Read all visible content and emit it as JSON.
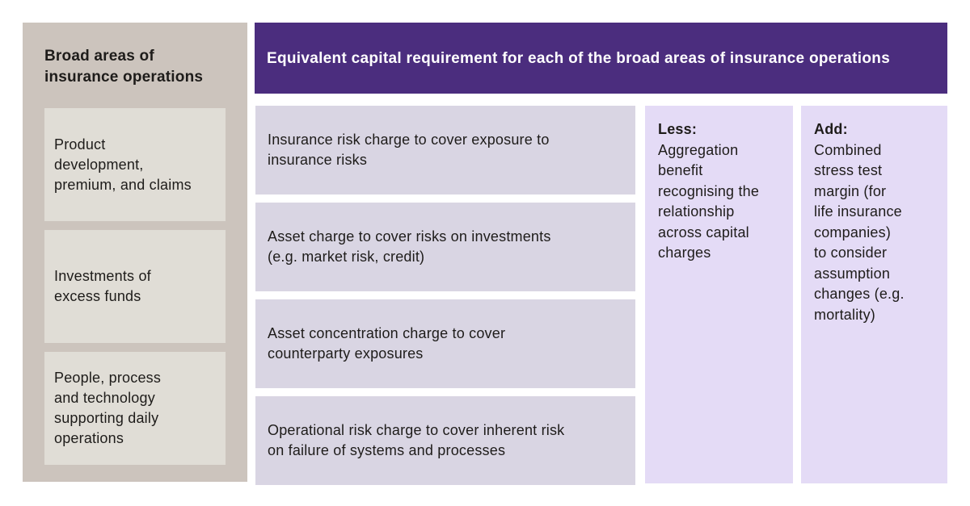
{
  "colors": {
    "page_bg": "#ffffff",
    "sidebar_bg": "#ccc4bd",
    "sidebar_box_bg": "#e0ddd6",
    "banner_bg": "#4b2d7e",
    "banner_text": "#ffffff",
    "charge_box_bg": "#d9d5e3",
    "adjustment_panel_bg": "#e4dbf6",
    "body_text": "#1e1c1a"
  },
  "sidebar": {
    "title": "Broad areas of\ninsurance operations",
    "items": [
      {
        "text": "Product\ndevelopment,\npremium, and claims"
      },
      {
        "text": "Investments of\nexcess funds"
      },
      {
        "text": "People, process\nand technology\nsupporting daily\noperations"
      }
    ]
  },
  "banner": {
    "title": "Equivalent capital requirement for each of the broad areas of insurance operations"
  },
  "charges": [
    {
      "text": "Insurance risk charge to cover exposure to\ninsurance risks"
    },
    {
      "text": "Asset charge to cover risks on investments\n(e.g. market risk, credit)"
    },
    {
      "text": "Asset concentration charge to cover\ncounterparty exposures"
    },
    {
      "text": "Operational risk charge to cover inherent risk\non failure of systems and processes"
    }
  ],
  "adjustments": {
    "less": {
      "label": "Less:",
      "text": "Aggregation\nbenefit\nrecognising the\nrelationship\nacross capital\ncharges"
    },
    "add": {
      "label": "Add:",
      "text": "Combined\nstress test\nmargin (for\nlife insurance\ncompanies)\nto consider\nassumption\nchanges (e.g.\nmortality)"
    }
  }
}
